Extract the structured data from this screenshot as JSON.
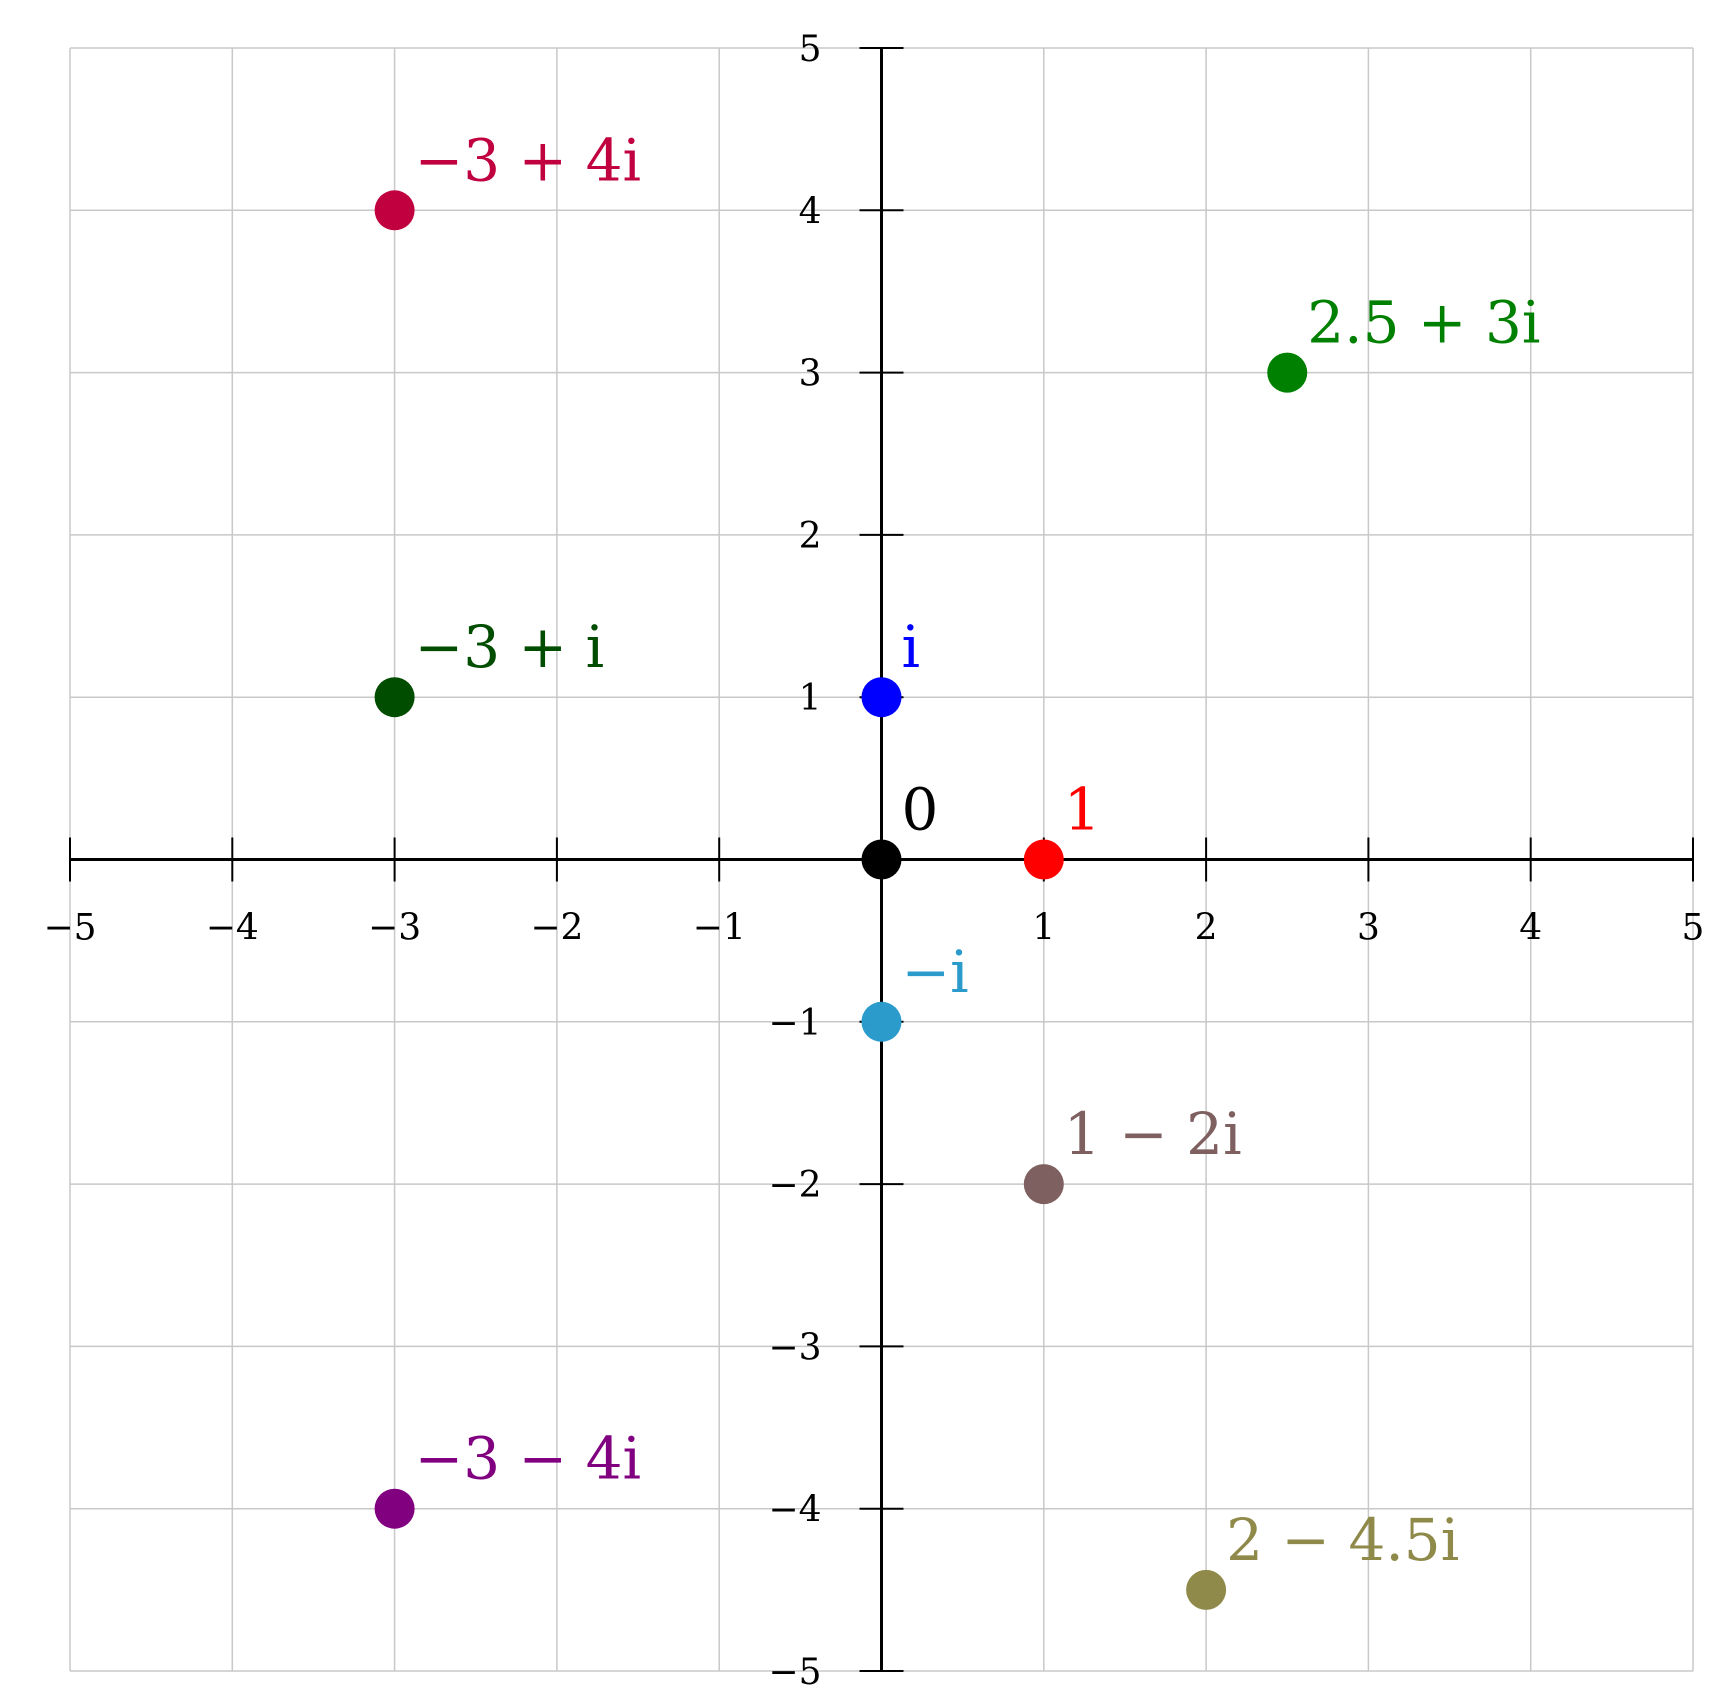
{
  "chart_data": {
    "type": "scatter",
    "title": "",
    "xlabel": "",
    "ylabel": "",
    "xlim": [
      -5,
      5
    ],
    "ylim": [
      -5,
      5
    ],
    "grid": true,
    "legend": "none",
    "x_ticks": [
      -5,
      -4,
      -3,
      -2,
      -1,
      1,
      2,
      3,
      4,
      5
    ],
    "y_ticks": [
      -5,
      -4,
      -3,
      -2,
      -1,
      1,
      2,
      3,
      4,
      5
    ],
    "x_tick_labels": [
      "−5",
      "−4",
      "−3",
      "−2",
      "−1",
      "1",
      "2",
      "3",
      "4",
      "5"
    ],
    "y_tick_labels": [
      "−5",
      "−4",
      "−3",
      "−2",
      "−1",
      "1",
      "2",
      "3",
      "4",
      "5"
    ],
    "points": [
      {
        "x": 0,
        "y": 0,
        "label": "0",
        "color": "#000000"
      },
      {
        "x": 1,
        "y": 0,
        "label": "1",
        "color": "#ff0000"
      },
      {
        "x": 0,
        "y": 1,
        "label": "i",
        "color": "#0000ff"
      },
      {
        "x": 0,
        "y": -1,
        "label": "−i",
        "color": "#2b9bcc"
      },
      {
        "x": -3,
        "y": 4,
        "label": "−3 + 4i",
        "color": "#c0003f"
      },
      {
        "x": 2.5,
        "y": 3,
        "label": "2.5 + 3i",
        "color": "#008000"
      },
      {
        "x": -3,
        "y": 1,
        "label": "−3 + i",
        "color": "#004d00"
      },
      {
        "x": 1,
        "y": -2,
        "label": "1 − 2i",
        "color": "#7f6060"
      },
      {
        "x": -3,
        "y": -4,
        "label": "−3 − 4i",
        "color": "#800080"
      },
      {
        "x": 2,
        "y": -4.5,
        "label": "2 − 4.5i",
        "color": "#8f8a4a"
      }
    ]
  }
}
